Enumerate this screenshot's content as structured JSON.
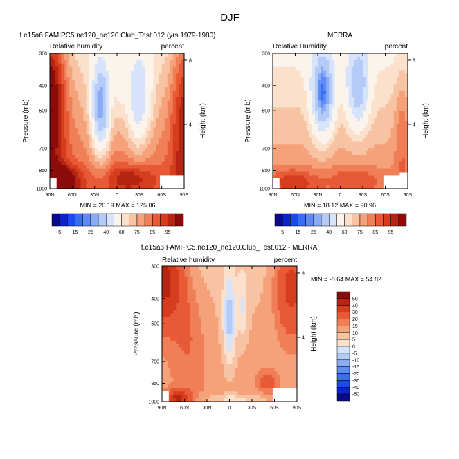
{
  "page_title": "DJF",
  "colors": {
    "blues": [
      "#0a0a8c",
      "#0b24c8",
      "#1a4be8",
      "#3a6ef0",
      "#5f8cf4",
      "#8aacf6",
      "#b4cbf8",
      "#d6e3fb"
    ],
    "neutral": "#fbf4ec",
    "reds": [
      "#fbe1cc",
      "#f8c3a2",
      "#f5a27b",
      "#f07f57",
      "#e85a36",
      "#d63d1d",
      "#b62412",
      "#8c0c0a"
    ],
    "missing": "#ffffff"
  },
  "colorbars": {
    "rh_labels": [
      "5",
      "15",
      "25",
      "40",
      "60",
      "75",
      "85",
      "95"
    ],
    "diff_labels": [
      "50",
      "40",
      "30",
      "20",
      "15",
      "10",
      "5",
      "0",
      "-5",
      "-10",
      "-15",
      "-20",
      "-30",
      "-40",
      "-50"
    ]
  },
  "chart_data": [
    {
      "type": "heatmap",
      "title": "f.e15a6.FAMIPC5.ne120_ne120.Club_Test.012 (yrs 1979-1980)",
      "left_label": "Relative humidity",
      "right_label": "percent",
      "xlabel": "",
      "ylabel": "Pressure (mb)",
      "y2label": "Height (km)",
      "x_ticks": [
        "90N",
        "60N",
        "30N",
        "0",
        "30S",
        "60S",
        "90S"
      ],
      "y_ticks": [
        "300",
        "400",
        "500",
        "700",
        "850",
        "1000"
      ],
      "y2_ticks": [
        "8",
        "4"
      ],
      "x_range": [
        90,
        -90
      ],
      "y_range": [
        1000,
        300
      ],
      "stats": "MIN = 20.19  MAX = 125.06",
      "levels": [
        5,
        10,
        15,
        20,
        25,
        30,
        40,
        50,
        60,
        65,
        70,
        75,
        80,
        85,
        90,
        95
      ],
      "min": 20.19,
      "max": 125.06
    },
    {
      "type": "heatmap",
      "title": "MERRA",
      "left_label": "Relative Humidity",
      "right_label": "percent",
      "xlabel": "",
      "ylabel": "Pressure (mb)",
      "y2label": "Height (km)",
      "x_ticks": [
        "90N",
        "60N",
        "30N",
        "0",
        "30S",
        "60S",
        "90S"
      ],
      "y_ticks": [
        "300",
        "400",
        "500",
        "700",
        "850",
        "1000"
      ],
      "y2_ticks": [
        "8",
        "4"
      ],
      "x_range": [
        90,
        -90
      ],
      "y_range": [
        1000,
        300
      ],
      "stats": "MIN = 18.12  MAX = 90.96",
      "levels": [
        5,
        10,
        15,
        20,
        25,
        30,
        40,
        50,
        60,
        65,
        70,
        75,
        80,
        85,
        90,
        95
      ],
      "min": 18.12,
      "max": 90.96
    },
    {
      "type": "heatmap",
      "title": "f.e15a6.FAMIPC5.ne120_ne120.Club_Test.012 - MERRA",
      "left_label": "Relative humidity",
      "right_label": "percent",
      "xlabel": "",
      "ylabel": "Pressure (mb)",
      "y2label": "Height (km)",
      "x_ticks": [
        "90N",
        "60N",
        "30N",
        "0",
        "30S",
        "60S",
        "90S"
      ],
      "y_ticks": [
        "300",
        "400",
        "500",
        "700",
        "850",
        "1000"
      ],
      "y2_ticks": [
        "8",
        "4"
      ],
      "x_range": [
        90,
        -90
      ],
      "y_range": [
        1000,
        300
      ],
      "stats": "MIN = -8.64  MAX = 54.82",
      "levels": [
        -50,
        -40,
        -30,
        -20,
        -15,
        -10,
        -5,
        0,
        5,
        10,
        15,
        20,
        30,
        40,
        50
      ],
      "min": -8.64,
      "max": 54.82
    }
  ]
}
